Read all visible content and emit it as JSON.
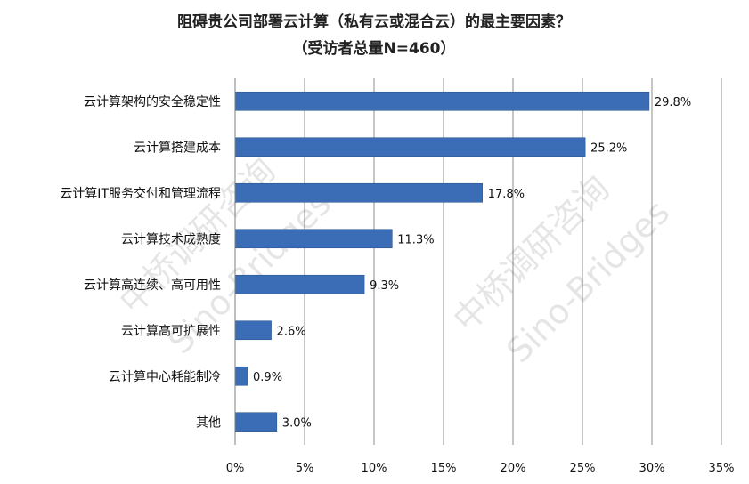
{
  "chart_data": {
    "type": "bar",
    "orientation": "horizontal",
    "title": "阻碍贵公司部署云计算（私有云或混合云）的最主要因素？",
    "subtitle": "（受访者总量N=460）",
    "categories": [
      "云计算架构的安全稳定性",
      "云计算搭建成本",
      "云计算IT服务交付和管理流程",
      "云计算技术成熟度",
      "云计算高连续、高可用性",
      "云计算高可扩展性",
      "云计算中心耗能制冷",
      "其他"
    ],
    "values": [
      29.8,
      25.2,
      17.8,
      11.3,
      9.3,
      2.6,
      0.9,
      3.0
    ],
    "value_labels": [
      "29.8%",
      "25.2%",
      "17.8%",
      "11.3%",
      "9.3%",
      "2.6%",
      "0.9%",
      "3.0%"
    ],
    "xlim": [
      0,
      35
    ],
    "xticks": [
      "0%",
      "5%",
      "10%",
      "15%",
      "20%",
      "25%",
      "30%",
      "35%"
    ],
    "grid": true,
    "bar_color": "#3A6DB5"
  },
  "watermark": {
    "left_cn": "中桥调研咨询",
    "left_en": "Sino-Bridges",
    "right_cn": "中桥调研咨询",
    "right_en": "Sino-Bridges"
  }
}
